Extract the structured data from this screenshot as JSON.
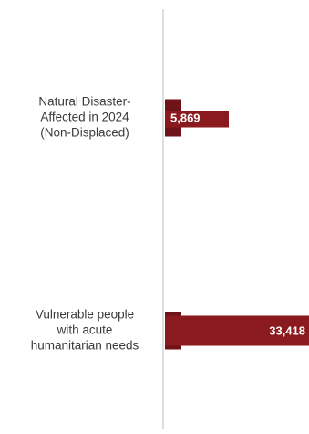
{
  "chart_data": {
    "type": "bar",
    "orientation": "horizontal",
    "categories": [
      [
        "Natural Disaster-",
        "Affected in 2024",
        "(Non-Displaced)"
      ],
      [
        "Vulnerable people",
        "with acute",
        "humanitarian needs"
      ]
    ],
    "values": [
      5869,
      33418
    ],
    "value_labels": [
      "5,869",
      "33,418"
    ],
    "xlim": [
      0,
      33418
    ],
    "grid": false,
    "legend": "none",
    "colors": {
      "bar": "#8b1a1e",
      "bar_shade": "#6e1317",
      "axis": "#d4d4d4"
    }
  }
}
